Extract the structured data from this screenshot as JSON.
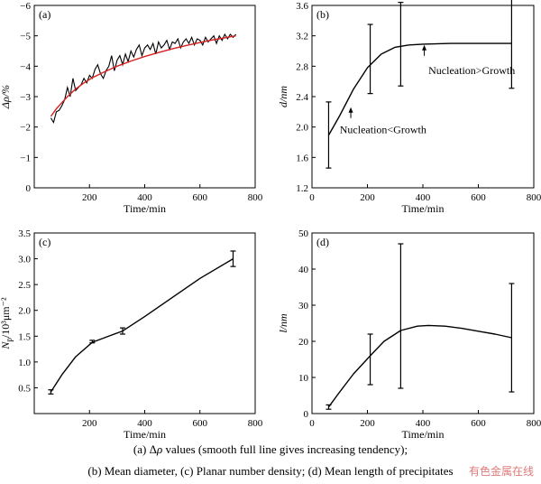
{
  "chart_data": [
    {
      "panel_label": "(a)",
      "type": "line",
      "xlabel": "Time/min",
      "ylabel": "Δρ/%",
      "xlim": [
        0,
        800
      ],
      "ylim": [
        0,
        -6
      ],
      "xticks": [
        200,
        400,
        600,
        800
      ],
      "yticks": [
        0,
        -1,
        -2,
        -3,
        -4,
        -5,
        -6
      ],
      "series": [
        {
          "role": "measured",
          "color": "#000000",
          "x": [
            60,
            70,
            80,
            90,
            100,
            110,
            120,
            130,
            140,
            150,
            160,
            170,
            180,
            190,
            200,
            210,
            220,
            230,
            240,
            250,
            260,
            270,
            280,
            290,
            300,
            310,
            320,
            330,
            340,
            350,
            360,
            370,
            380,
            390,
            400,
            410,
            420,
            430,
            440,
            450,
            460,
            470,
            480,
            490,
            500,
            510,
            520,
            530,
            540,
            550,
            560,
            570,
            580,
            590,
            600,
            610,
            620,
            630,
            640,
            650,
            660,
            670,
            680,
            690,
            700,
            710,
            720,
            730
          ],
          "y": [
            -2.3,
            -2.15,
            -2.5,
            -2.55,
            -2.7,
            -2.9,
            -3.3,
            -3.0,
            -3.6,
            -3.2,
            -3.3,
            -3.4,
            -3.6,
            -3.45,
            -3.7,
            -3.6,
            -3.9,
            -4.05,
            -3.75,
            -3.6,
            -3.85,
            -4.0,
            -4.35,
            -3.85,
            -4.2,
            -4.35,
            -4.05,
            -4.4,
            -4.15,
            -4.5,
            -4.3,
            -4.55,
            -4.7,
            -4.35,
            -4.6,
            -4.7,
            -4.55,
            -4.75,
            -4.4,
            -4.8,
            -4.6,
            -4.7,
            -4.85,
            -4.55,
            -4.8,
            -4.75,
            -4.9,
            -4.6,
            -4.8,
            -4.9,
            -4.75,
            -4.95,
            -4.7,
            -4.9,
            -4.85,
            -4.7,
            -4.95,
            -4.8,
            -4.9,
            -5.0,
            -4.75,
            -5.0,
            -4.85,
            -5.05,
            -4.9,
            -5.05,
            -4.95,
            -5.05
          ]
        },
        {
          "role": "trend",
          "color": "#d62020",
          "x": [
            60,
            80,
            100,
            120,
            150,
            180,
            210,
            250,
            300,
            350,
            400,
            450,
            500,
            550,
            600,
            650,
            700,
            730
          ],
          "y": [
            -2.35,
            -2.6,
            -2.8,
            -3.0,
            -3.25,
            -3.45,
            -3.62,
            -3.8,
            -4.0,
            -4.17,
            -4.32,
            -4.45,
            -4.57,
            -4.68,
            -4.78,
            -4.87,
            -4.95,
            -5.0
          ]
        }
      ]
    },
    {
      "panel_label": "(b)",
      "type": "line",
      "xlabel": "Time/min",
      "ylabel": "d/nm",
      "xlim": [
        0,
        800
      ],
      "ylim": [
        1.2,
        3.6
      ],
      "xticks": [
        0,
        200,
        400,
        600,
        800
      ],
      "yticks": [
        1.2,
        1.6,
        2.0,
        2.4,
        2.8,
        3.2,
        3.6
      ],
      "curve": {
        "x": [
          60,
          100,
          150,
          200,
          250,
          300,
          350,
          400,
          500,
          600,
          720
        ],
        "y": [
          1.89,
          2.15,
          2.5,
          2.78,
          2.96,
          3.05,
          3.08,
          3.09,
          3.1,
          3.1,
          3.1
        ]
      },
      "errorbars": [
        {
          "x": 60,
          "low": 1.46,
          "high": 2.33
        },
        {
          "x": 210,
          "low": 2.44,
          "high": 3.35
        },
        {
          "x": 320,
          "low": 2.54,
          "high": 3.64
        },
        {
          "x": 720,
          "low": 2.51,
          "high": 3.68
        }
      ],
      "annotations": [
        {
          "text": "Nucleation>Growth",
          "x": 420,
          "y": 2.7,
          "arrow_to": [
            405,
            3.08
          ]
        },
        {
          "text": "Nucleation<Growth",
          "x": 100,
          "y": 1.92,
          "arrow_to": [
            140,
            2.26
          ]
        }
      ]
    },
    {
      "panel_label": "(c)",
      "type": "line",
      "xlabel": "Time/min",
      "ylabel": "Np/10³μm⁻²",
      "ylabel_main": "N",
      "ylabel_sub": "p",
      "ylabel_rest": "/10³μm⁻²",
      "xlim": [
        0,
        800
      ],
      "ylim": [
        0,
        3.5
      ],
      "xticks": [
        200,
        400,
        600,
        800
      ],
      "yticks": [
        0.5,
        1.0,
        1.5,
        2.0,
        2.5,
        3.0,
        3.5
      ],
      "curve": {
        "x": [
          60,
          100,
          150,
          210,
          260,
          320,
          400,
          500,
          600,
          720
        ],
        "y": [
          0.42,
          0.75,
          1.1,
          1.38,
          1.48,
          1.6,
          1.88,
          2.25,
          2.62,
          3.0
        ]
      },
      "errorbars": [
        {
          "x": 60,
          "low": 0.38,
          "high": 0.46
        },
        {
          "x": 210,
          "low": 1.37,
          "high": 1.42
        },
        {
          "x": 320,
          "low": 1.54,
          "high": 1.66
        },
        {
          "x": 720,
          "low": 2.85,
          "high": 3.15
        }
      ]
    },
    {
      "panel_label": "(d)",
      "type": "line",
      "xlabel": "Time/min",
      "ylabel": "l/nm",
      "xlim": [
        0,
        800
      ],
      "ylim": [
        0,
        50
      ],
      "xticks": [
        0,
        200,
        400,
        600,
        800
      ],
      "yticks": [
        0,
        10,
        20,
        30,
        40,
        50
      ],
      "curve": {
        "x": [
          60,
          100,
          150,
          210,
          260,
          320,
          380,
          420,
          480,
          540,
          600,
          660,
          720
        ],
        "y": [
          1.8,
          6.0,
          11.0,
          16.0,
          20.0,
          23.0,
          24.2,
          24.4,
          24.2,
          23.6,
          22.8,
          22.0,
          21.0
        ]
      },
      "errorbars": [
        {
          "x": 60,
          "low": 1.2,
          "high": 2.4
        },
        {
          "x": 210,
          "low": 8.0,
          "high": 22.0
        },
        {
          "x": 320,
          "low": 7.0,
          "high": 47.0
        },
        {
          "x": 720,
          "low": 6.0,
          "high": 36.0
        }
      ]
    }
  ],
  "caption": {
    "line1_pre": "(a) Δ",
    "line1_rho": "ρ",
    "line1_post": " values (smooth full line gives increasing tendency);",
    "line2": "(b) Mean diameter, (c) Planar number density; (d) Mean length of precipitates"
  },
  "watermark": "有色金属在线"
}
